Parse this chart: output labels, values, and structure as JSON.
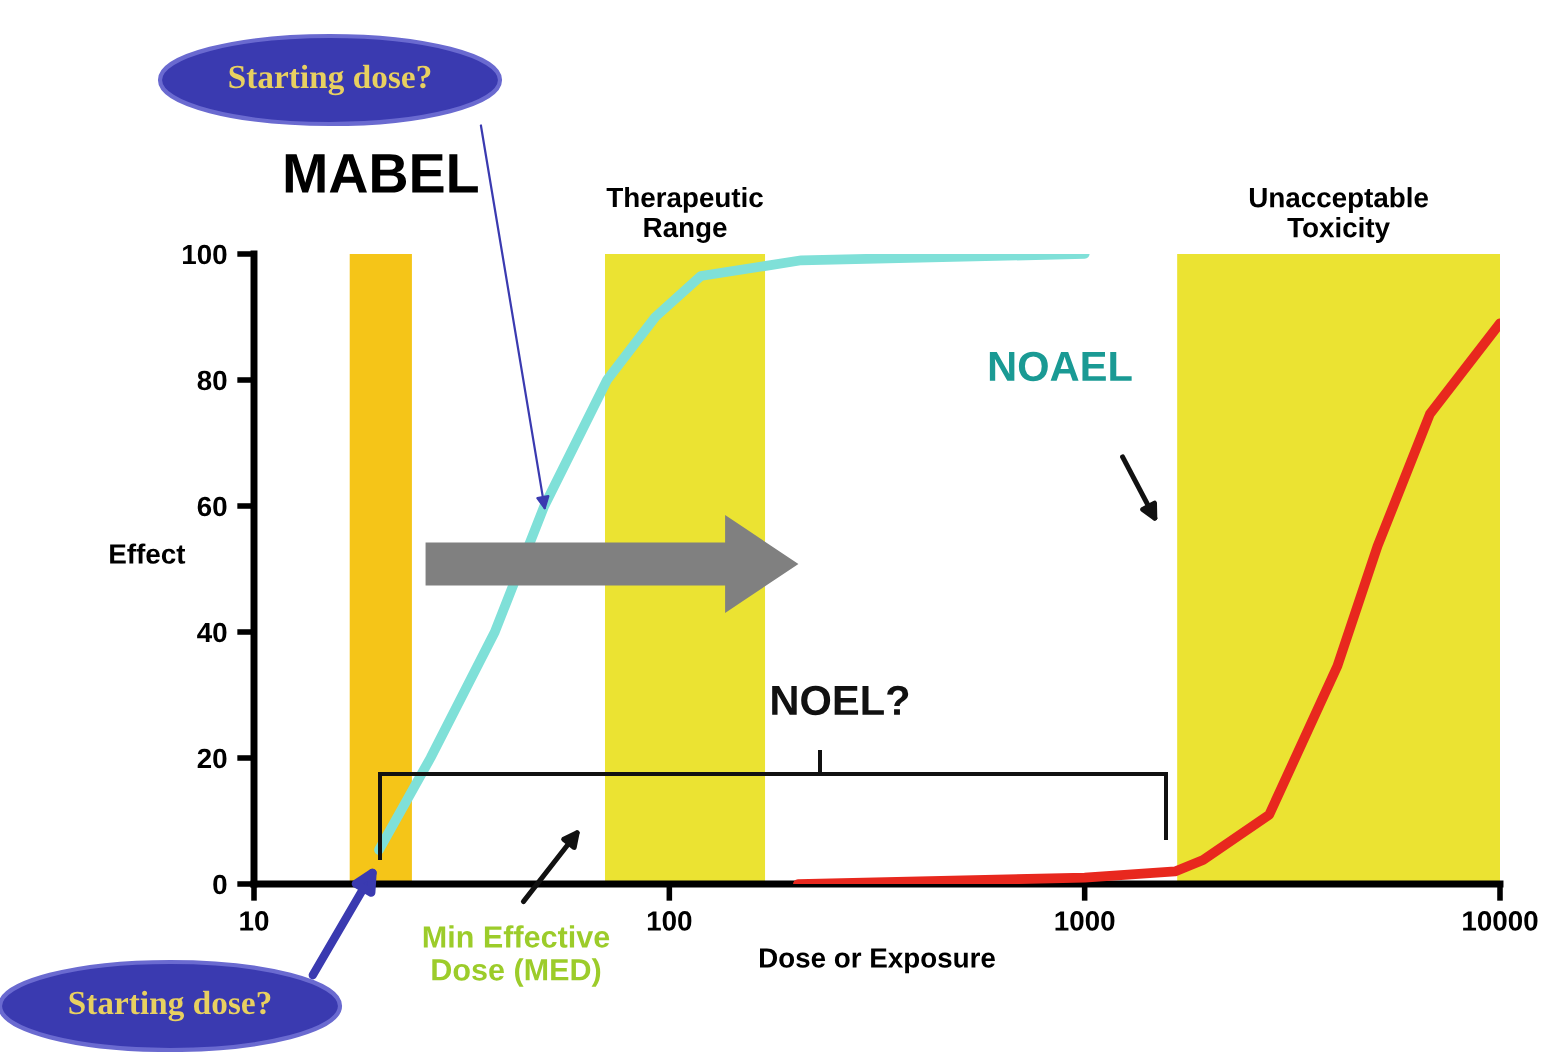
{
  "chart_data": {
    "type": "line",
    "xlabel": "Dose or Exposure",
    "ylabel": "Effect",
    "log": "x",
    "xlim": [
      10,
      10000
    ],
    "xticks": [
      10,
      100,
      1000,
      10000
    ],
    "ylim": [
      0,
      100
    ],
    "yticks": [
      0,
      20,
      40,
      60,
      80,
      100
    ],
    "grid": false,
    "legend": false,
    "series": [
      {
        "color": "#7fe0d8",
        "x": [
          20,
          26.6,
          38,
          50,
          70.8,
          92.5,
          119,
          208,
          1000
        ],
        "values": [
          5.4,
          20,
          40,
          60,
          80,
          90,
          96.5,
          99,
          100
        ]
      },
      {
        "color": "#e8281e",
        "x": [
          204,
          1000,
          1650,
          1928,
          2782,
          4060,
          5070,
          6780,
          10000
        ],
        "values": [
          0,
          1,
          2,
          3.8,
          11,
          34.6,
          53.6,
          74.6,
          89
        ]
      }
    ],
    "bands": [
      {
        "axis": "x",
        "from": 17,
        "to": 24,
        "label": "MABEL",
        "color": "#f5c518"
      },
      {
        "axis": "x",
        "from": 70,
        "to": 170,
        "label": "Therapeutic\nRange",
        "color": "#ebe332"
      },
      {
        "axis": "x",
        "from": 1670,
        "to": 10000,
        "label": "Unacceptable\nToxicity",
        "color": "#ebe332"
      }
    ],
    "annotations": [
      "Starting dose?",
      "Starting dose?",
      "NOAEL",
      "NOEL?",
      "Min Effective\nDose (MED)"
    ]
  }
}
